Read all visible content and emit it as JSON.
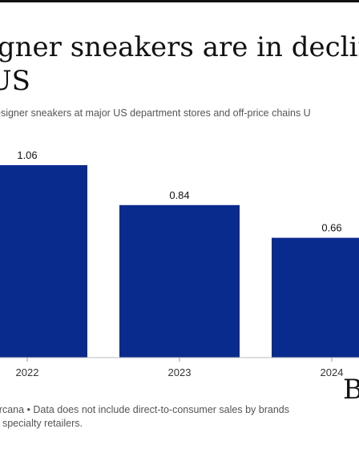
{
  "header": {
    "title": "igner sneakers are in declin\nUS",
    "subtitle": "esigner sneakers at major US department stores and off-price chains U"
  },
  "footer": {
    "source": "ircana • Data does not include direct-to-consumer sales by brands\nt specialty retailers.",
    "logo": "B"
  },
  "colors": {
    "bar": "#0a2b8e"
  },
  "chart_data": {
    "type": "bar",
    "categories": [
      "2022",
      "2023",
      "2024"
    ],
    "values": [
      1.06,
      0.84,
      0.66
    ],
    "value_labels": [
      "1.06",
      "0.84",
      "0.66"
    ],
    "ylim": [
      0,
      1.3
    ],
    "grid": false,
    "legend": "none"
  }
}
